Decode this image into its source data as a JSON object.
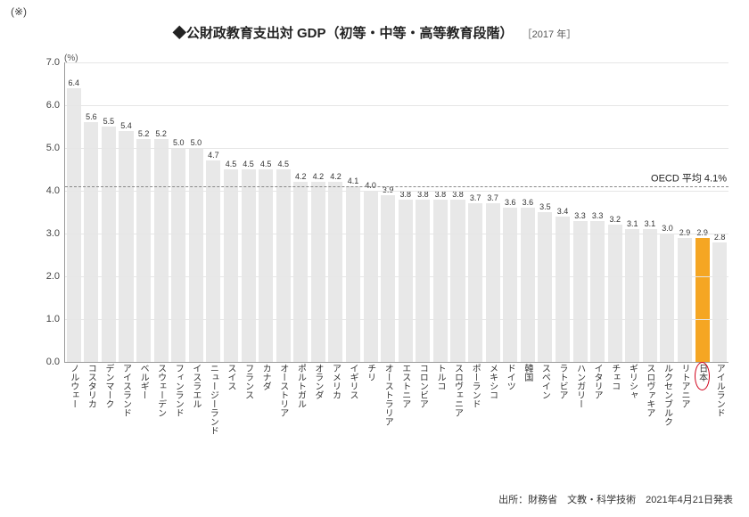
{
  "note_mark": "(※)",
  "title_diamond": "◆",
  "title_text": "公財政教育支出対 GDP（初等・中等・高等教育段階）",
  "title_year": "［2017 年］",
  "y_unit": "(%)",
  "chart": {
    "type": "bar",
    "ylim": [
      0,
      7.0
    ],
    "ytick_step": 1.0,
    "top_tick_label": "7.0",
    "background_color": "#ffffff",
    "grid_color": "#e6e6e6",
    "axis_color": "#999999",
    "bar_color": "#e8e8e8",
    "bar_highlight_color": "#f5a623",
    "value_label_font_size": 9,
    "x_label_font_size": 10,
    "bar_gap_ratio": 0.18,
    "countries": [
      {
        "label": "ノルウェー",
        "value": 6.4
      },
      {
        "label": "コスタリカ",
        "value": 5.6
      },
      {
        "label": "デンマーク",
        "value": 5.5
      },
      {
        "label": "アイスランド",
        "value": 5.4
      },
      {
        "label": "ベルギー",
        "value": 5.2
      },
      {
        "label": "スウェーデン",
        "value": 5.2
      },
      {
        "label": "フィンランド",
        "value": 5.0
      },
      {
        "label": "イスラエル",
        "value": 5.0
      },
      {
        "label": "ニュージーランド",
        "value": 4.7
      },
      {
        "label": "スイス",
        "value": 4.5
      },
      {
        "label": "フランス",
        "value": 4.5
      },
      {
        "label": "カナダ",
        "value": 4.5
      },
      {
        "label": "オーストリア",
        "value": 4.5
      },
      {
        "label": "ポルトガル",
        "value": 4.2
      },
      {
        "label": "オランダ",
        "value": 4.2
      },
      {
        "label": "アメリカ",
        "value": 4.2
      },
      {
        "label": "イギリス",
        "value": 4.1
      },
      {
        "label": "チリ",
        "value": 4.0
      },
      {
        "label": "オーストラリア",
        "value": 3.9
      },
      {
        "label": "エストニア",
        "value": 3.8
      },
      {
        "label": "コロンビア",
        "value": 3.8
      },
      {
        "label": "トルコ",
        "value": 3.8
      },
      {
        "label": "スロヴェニア",
        "value": 3.8
      },
      {
        "label": "ポーランド",
        "value": 3.7
      },
      {
        "label": "メキシコ",
        "value": 3.7
      },
      {
        "label": "ドイツ",
        "value": 3.6
      },
      {
        "label": "韓国",
        "value": 3.6
      },
      {
        "label": "スペイン",
        "value": 3.5
      },
      {
        "label": "ラトビア",
        "value": 3.4
      },
      {
        "label": "ハンガリー",
        "value": 3.3
      },
      {
        "label": "イタリア",
        "value": 3.3
      },
      {
        "label": "チェコ",
        "value": 3.2
      },
      {
        "label": "ギリシャ",
        "value": 3.1
      },
      {
        "label": "スロヴァキア",
        "value": 3.1
      },
      {
        "label": "ルクセンブルク",
        "value": 3.0
      },
      {
        "label": "リトアニア",
        "value": 2.9
      },
      {
        "label": "日本",
        "value": 2.9,
        "highlight": true
      },
      {
        "label": "アイルランド",
        "value": 2.8
      }
    ],
    "oecd_average_value": 4.1,
    "oecd_average_label": "OECD 平均 4.1%"
  },
  "footer_source": "出所：財務省　文教・科学技術　2021年4月21日発表"
}
